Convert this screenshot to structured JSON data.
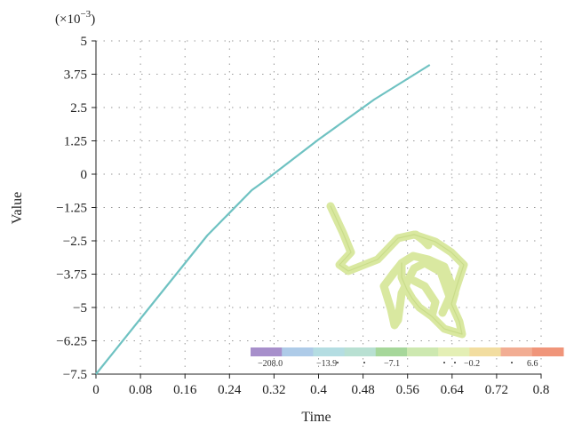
{
  "chart_data": {
    "type": "line",
    "xlabel": "Time",
    "ylabel": "Value",
    "scale_note": "(×10−3)",
    "xlim": [
      0,
      0.8
    ],
    "ylim": [
      -7.5,
      5
    ],
    "x_ticks": [
      0,
      0.08,
      0.16,
      0.24,
      0.32,
      0.4,
      0.48,
      0.56,
      0.64,
      0.72,
      0.8
    ],
    "x_tick_labels": [
      "0",
      "0.08",
      "0.16",
      "0.24",
      "0.32",
      "0.4",
      "0.48",
      "0.56",
      "0.64",
      "0.72",
      "0.8"
    ],
    "y_ticks": [
      5,
      3.75,
      2.5,
      1.25,
      0,
      -1.25,
      -2.5,
      -3.75,
      -5,
      -6.25,
      -7.5
    ],
    "y_tick_labels": [
      "5",
      "3.75",
      "2.5",
      "1.25",
      "0",
      "−1.25",
      "−2.5",
      "−3.75",
      "−5",
      "−6.25",
      "−7.5"
    ],
    "grid": true,
    "series": [
      {
        "color": "#6fc2c2",
        "x": [
          0,
          0.1,
          0.2,
          0.28,
          0.3,
          0.4,
          0.5,
          0.6
        ],
        "y": [
          -7.5,
          -4.9,
          -2.3,
          -0.6,
          -0.3,
          1.3,
          2.8,
          4.1
        ]
      }
    ],
    "colorbar": {
      "colors": [
        "#a78fcb",
        "#aecbe8",
        "#b4dde2",
        "#b8e0d2",
        "#a6d79a",
        "#cde8b0",
        "#e4efb5",
        "#f2dda0",
        "#f2ad93",
        "#f0957a"
      ],
      "labels": [
        "−208.0",
        "−13.9",
        "−7.1",
        "−0.2",
        "6.6"
      ]
    },
    "inset_mesh_color": "#d9e8a0"
  }
}
